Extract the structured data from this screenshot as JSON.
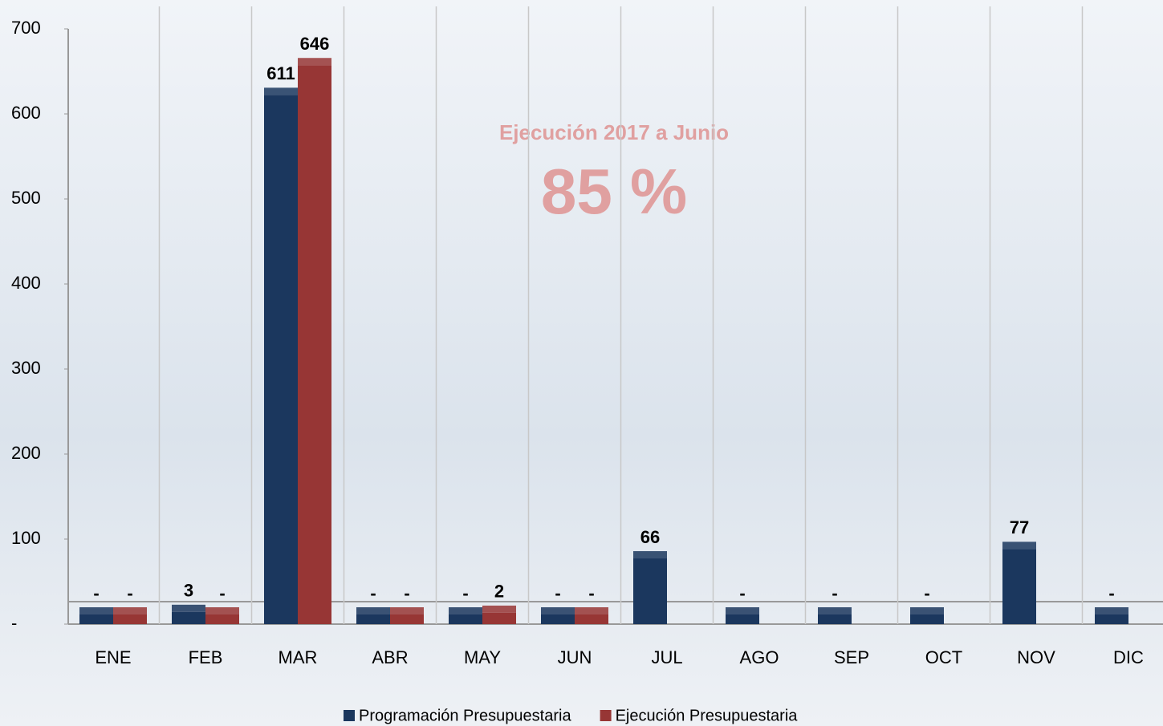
{
  "chart_data": {
    "type": "bar",
    "categories": [
      "ENE",
      "FEB",
      "MAR",
      "ABR",
      "MAY",
      "JUN",
      "JUL",
      "AGO",
      "SEP",
      "OCT",
      "NOV",
      "DIC"
    ],
    "series": [
      {
        "name": "Programación Presupuestaria",
        "color": "#1b375e",
        "values": [
          0,
          3,
          611,
          0,
          0,
          0,
          66,
          0,
          0,
          0,
          77,
          0
        ],
        "value_labels": [
          "-",
          "3",
          "611",
          "-",
          "-",
          "-",
          "66",
          "-",
          "-",
          "-",
          "77",
          "-"
        ]
      },
      {
        "name": "Ejecución Presupuestaria",
        "color": "#973635",
        "values": [
          0,
          0,
          646,
          0,
          2,
          0,
          null,
          null,
          null,
          null,
          null,
          null
        ],
        "value_labels": [
          "-",
          "-",
          "646",
          "-",
          "2",
          "-",
          null,
          null,
          null,
          null,
          null,
          null
        ]
      }
    ],
    "ylim": [
      0,
      700
    ],
    "yticks": [
      {
        "value": 0,
        "label": "-"
      },
      100,
      200,
      300,
      400,
      500,
      600,
      700
    ],
    "annotations": [
      "Ejecución 2017 a Junio",
      "85 %"
    ],
    "grid": true
  }
}
